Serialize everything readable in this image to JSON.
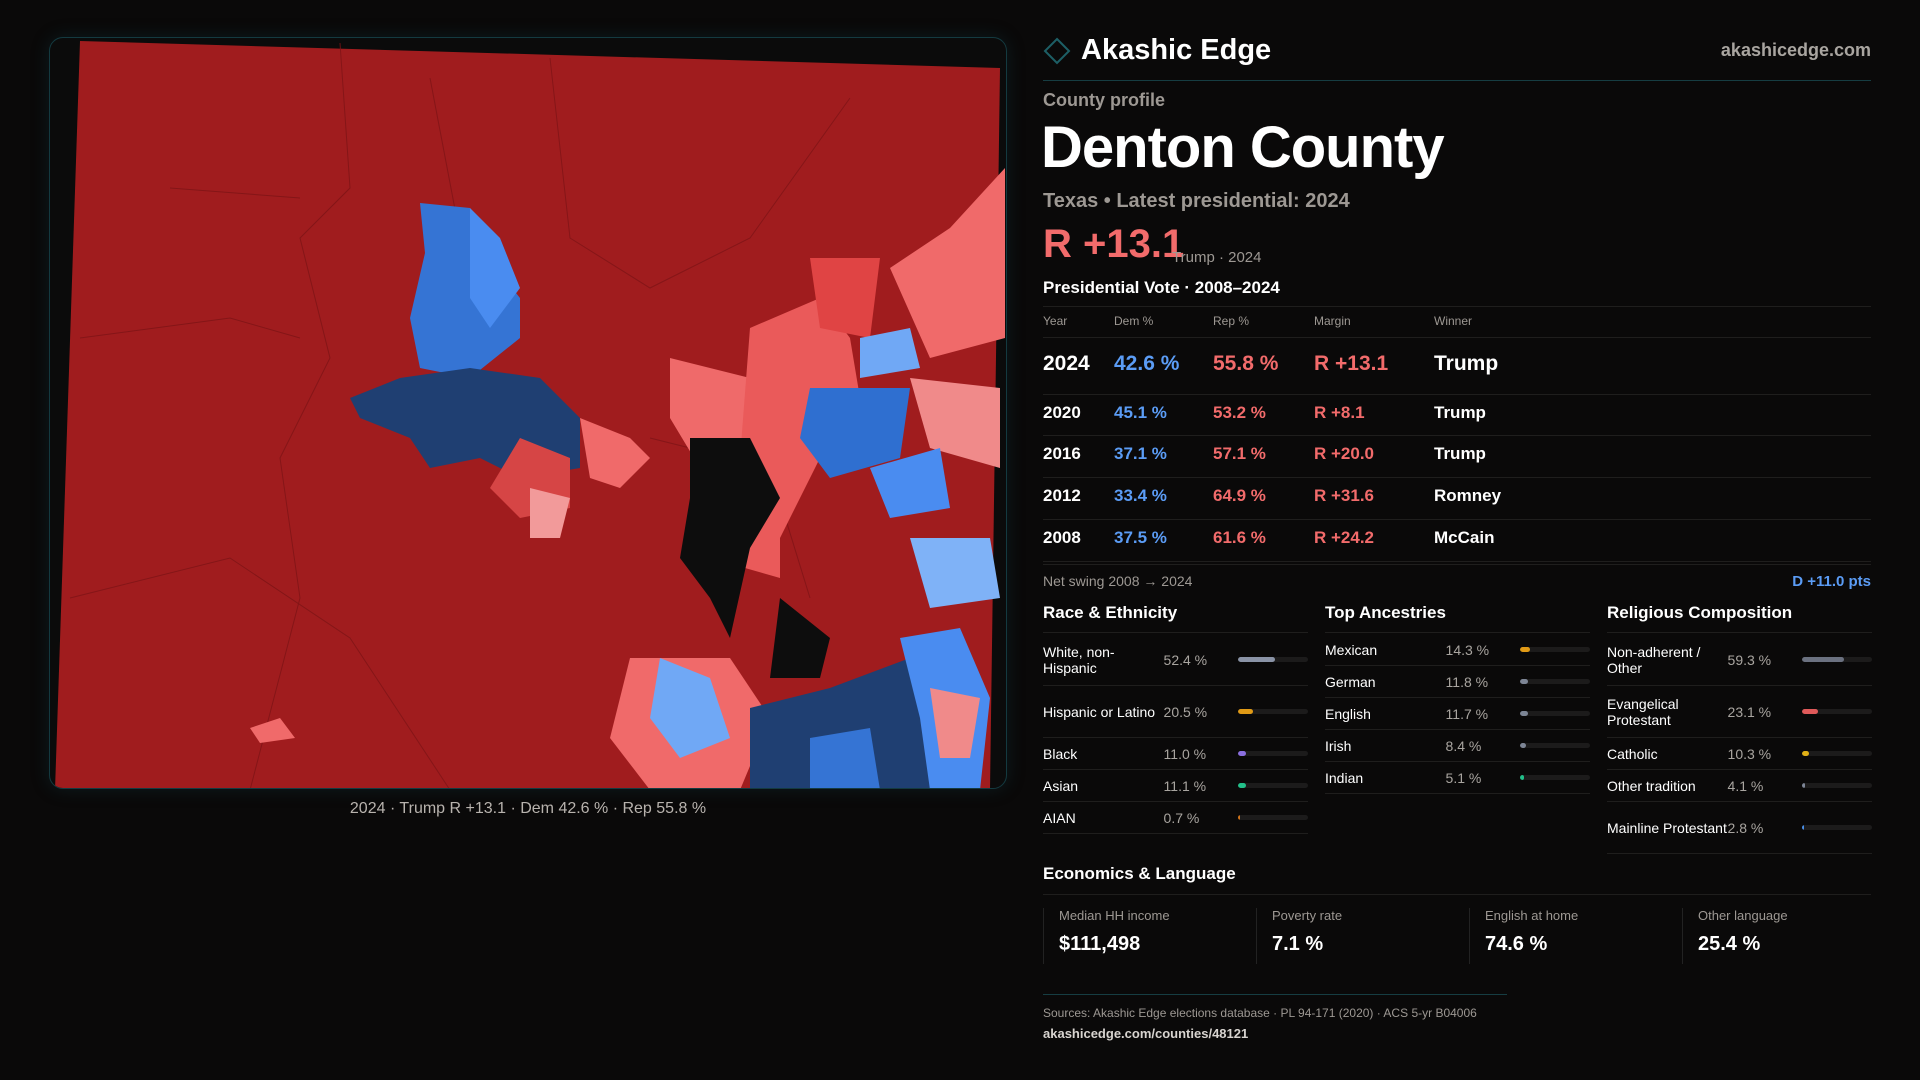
{
  "brand": {
    "name": "Akashic Edge",
    "site": "akashicedge.com"
  },
  "map": {
    "caption": "2024 · Trump R +13.1 · Dem 42.6 % · Rep 55.8 %"
  },
  "profile": {
    "kicker": "County profile",
    "title": "Denton County",
    "subtitle": "Texas • Latest presidential: 2024",
    "headline_margin": "R +13.1",
    "headline_note": "Trump · 2024"
  },
  "vote": {
    "title": "Presidential Vote · 2008–2024",
    "headers": [
      "Year",
      "Dem %",
      "Rep %",
      "Margin",
      "Winner"
    ],
    "rows": [
      [
        "2024",
        "42.6 %",
        "55.8 %",
        "R +13.1",
        "Trump"
      ],
      [
        "2020",
        "45.1 %",
        "53.2 %",
        "R +8.1",
        "Trump"
      ],
      [
        "2016",
        "37.1 %",
        "57.1 %",
        "R +20.0",
        "Trump"
      ],
      [
        "2012",
        "33.4 %",
        "64.9 %",
        "R +31.6",
        "Romney"
      ],
      [
        "2008",
        "37.5 %",
        "61.6 %",
        "R +24.2",
        "McCain"
      ]
    ],
    "swing_label": "Net swing 2008 → 2024",
    "swing_value": "D +11.0 pts"
  },
  "race": {
    "title": "Race & Ethnicity",
    "items": [
      {
        "label": "White, non-Hispanic",
        "value": "52.4 %",
        "pct": 52.4,
        "color": "#8a93a6"
      },
      {
        "label": "Hispanic or Latino",
        "value": "20.5 %",
        "pct": 20.5,
        "color": "#e09a16"
      },
      {
        "label": "Black",
        "value": "11.0 %",
        "pct": 11.0,
        "color": "#8b6fe0"
      },
      {
        "label": "Asian",
        "value": "11.1 %",
        "pct": 11.1,
        "color": "#22c08a"
      },
      {
        "label": "AIAN",
        "value": "0.7 %",
        "pct": 0.7,
        "color": "#d1741a"
      }
    ]
  },
  "ancestry": {
    "title": "Top Ancestries",
    "items": [
      {
        "label": "Mexican",
        "value": "14.3 %",
        "pct": 14.3,
        "color": "#e09a16"
      },
      {
        "label": "German",
        "value": "11.8 %",
        "pct": 11.8,
        "color": "#7d8595"
      },
      {
        "label": "English",
        "value": "11.7 %",
        "pct": 11.7,
        "color": "#7d8595"
      },
      {
        "label": "Irish",
        "value": "8.4 %",
        "pct": 8.4,
        "color": "#7d8595"
      },
      {
        "label": "Indian",
        "value": "5.1 %",
        "pct": 5.1,
        "color": "#22c08a"
      }
    ]
  },
  "religion": {
    "title": "Religious Composition",
    "items": [
      {
        "label": "Non-adherent / Other",
        "value": "59.3 %",
        "pct": 59.3,
        "color": "#6b7180"
      },
      {
        "label": "Evangelical Protestant",
        "value": "23.1 %",
        "pct": 23.1,
        "color": "#e05a5a"
      },
      {
        "label": "Catholic",
        "value": "10.3 %",
        "pct": 10.3,
        "color": "#e0b016"
      },
      {
        "label": "Other tradition",
        "value": "4.1 %",
        "pct": 4.1,
        "color": "#7d8595"
      },
      {
        "label": "Mainline Protestant",
        "value": "2.8 %",
        "pct": 2.8,
        "color": "#4a8fe8"
      }
    ]
  },
  "econ": {
    "title": "Economics & Language",
    "stats": [
      {
        "label": "Median HH income",
        "value": "$111,498"
      },
      {
        "label": "Poverty rate",
        "value": "7.1 %"
      },
      {
        "label": "English at home",
        "value": "74.6 %"
      },
      {
        "label": "Other language",
        "value": "25.4 %"
      }
    ]
  },
  "footer": {
    "sources": "Sources: Akashic Edge elections database · PL 94-171 (2020) · ACS 5-yr B04006",
    "url": "akashicedge.com/counties/48121"
  }
}
